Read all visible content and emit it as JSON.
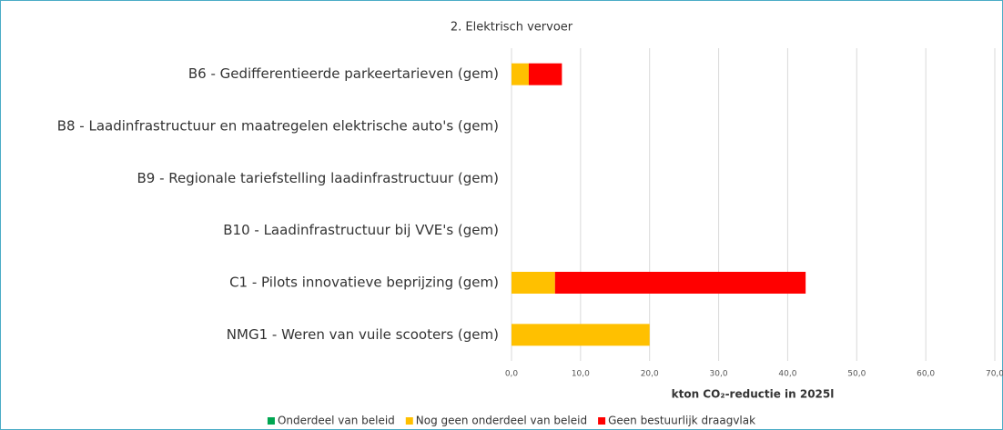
{
  "chart_data": {
    "type": "bar",
    "orientation": "horizontal",
    "stacked": true,
    "title": "2. Elektrisch vervoer",
    "categories": [
      "B6 - Gedifferentieerde parkeertarieven (gem)",
      "B8 - Laadinfrastructuur en maatregelen elektrische auto's (gem)",
      "B9 - Regionale tariefstelling laadinfrastructuur (gem)",
      "B10 - Laadinfrastructuur bij VVE's (gem)",
      "C1 - Pilots innovatieve beprijzing (gem)",
      "NMG1 - Weren van vuile scooters (gem)"
    ],
    "series": [
      {
        "name": "Onderdeel van beleid",
        "color": "#00a651",
        "values": [
          0,
          0,
          0,
          0,
          0,
          0
        ]
      },
      {
        "name": "Nog geen onderdeel van beleid",
        "color": "#ffc000",
        "values": [
          2.5,
          0,
          0,
          0,
          6.3,
          20.0
        ]
      },
      {
        "name": "Geen bestuurlijk draagvlak",
        "color": "#ff0000",
        "values": [
          4.8,
          0,
          0,
          0,
          36.3,
          0
        ]
      }
    ],
    "xlabel": "kton CO₂-reductie in 2025l",
    "xlim": [
      0,
      70
    ],
    "xticks": [
      {
        "value": 0,
        "label": "0,0"
      },
      {
        "value": 10,
        "label": "10,0"
      },
      {
        "value": 20,
        "label": "20,0"
      },
      {
        "value": 30,
        "label": "30,0"
      },
      {
        "value": 40,
        "label": "40,0"
      },
      {
        "value": 50,
        "label": "50,0"
      },
      {
        "value": 60,
        "label": "60,0"
      },
      {
        "value": 70,
        "label": "70,0"
      }
    ],
    "grid": true,
    "legend": "bottom"
  }
}
